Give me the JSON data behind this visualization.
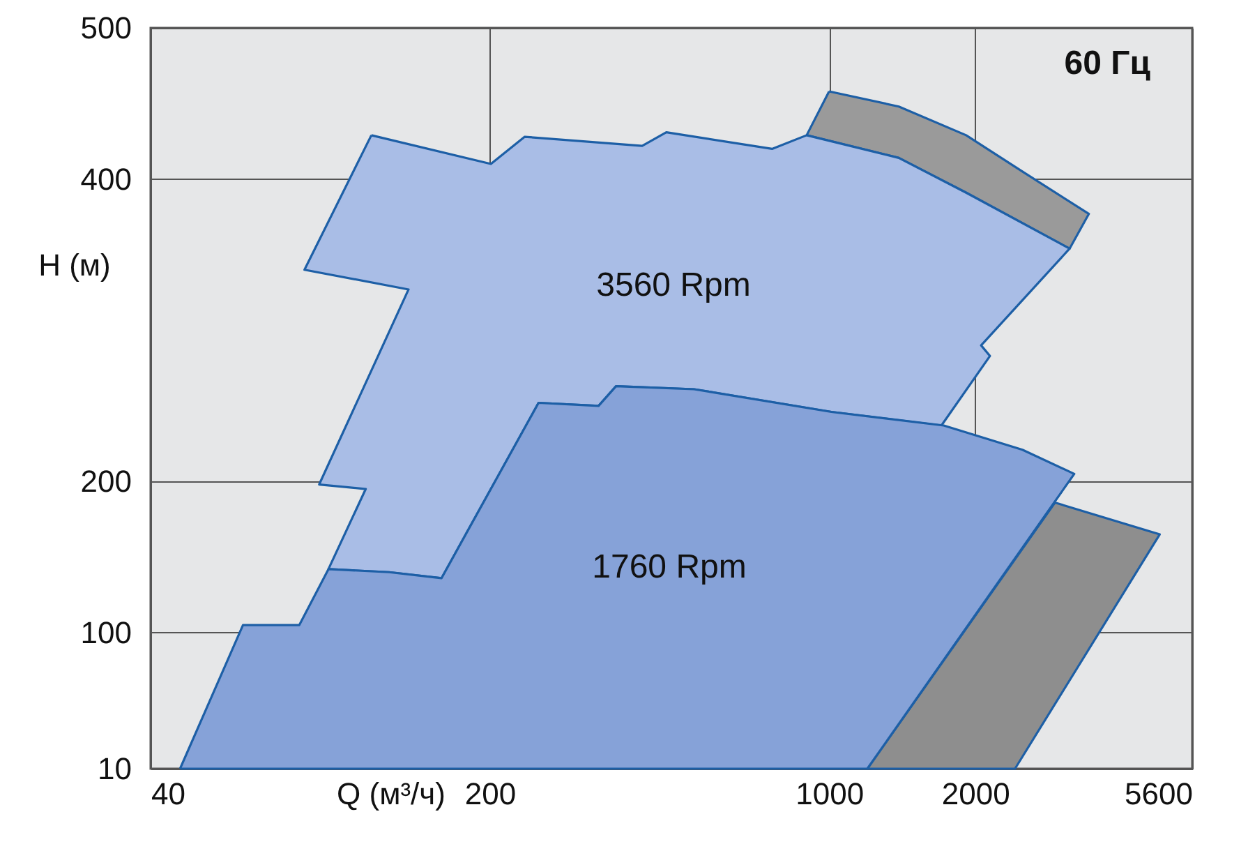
{
  "chart_data": {
    "type": "area",
    "xlabel": "Q (м³/ч)",
    "ylabel": "H (м)",
    "xlim": [
      40,
      5600
    ],
    "xticks": [
      40,
      200,
      1000,
      2000,
      5600
    ],
    "ylim": [
      10,
      500
    ],
    "yticks": [
      10,
      100,
      200,
      400,
      500
    ],
    "log": "x",
    "grid": true,
    "series": [
      {
        "color": "#9a9a9a",
        "x": [
          1000,
          1392,
          1916,
          2502,
          3430,
          3130,
          1916,
          1392,
          899
        ],
        "values": [
          458,
          448,
          429,
          405,
          377,
          354,
          391,
          414,
          429
        ]
      },
      {
        "color": "#a9bde6",
        "x": [
          114,
          201,
          236,
          412,
          462,
          763,
          899,
          1392,
          1916,
          3130,
          2057,
          2145,
          1704,
          1011,
          527,
          364,
          335,
          252,
          159,
          124,
          93,
          111,
          89,
          136,
          83
        ],
        "values": [
          429,
          410,
          428,
          422,
          431,
          420,
          429,
          414,
          391,
          354,
          290,
          283,
          237,
          246,
          261,
          263,
          250,
          252,
          136,
          140,
          142,
          195,
          198,
          327,
          340
        ]
      },
      {
        "color": "#8e8e8e",
        "x": [
          2920,
          4800,
          2416,
          1199
        ],
        "values": [
          186,
          165,
          10,
          10
        ]
      },
      {
        "color": "#86a2d8",
        "x": [
          46,
          62,
          81,
          93,
          124,
          159,
          252,
          335,
          364,
          527,
          1011,
          1723,
          2502,
          3200,
          1199
        ],
        "values": [
          10,
          105,
          105,
          142,
          140,
          136,
          252,
          250,
          263,
          261,
          246,
          237,
          221,
          205,
          10
        ]
      }
    ],
    "annotations": [
      "60 Гц",
      "3560 Rpm",
      "1760 Rpm"
    ]
  }
}
